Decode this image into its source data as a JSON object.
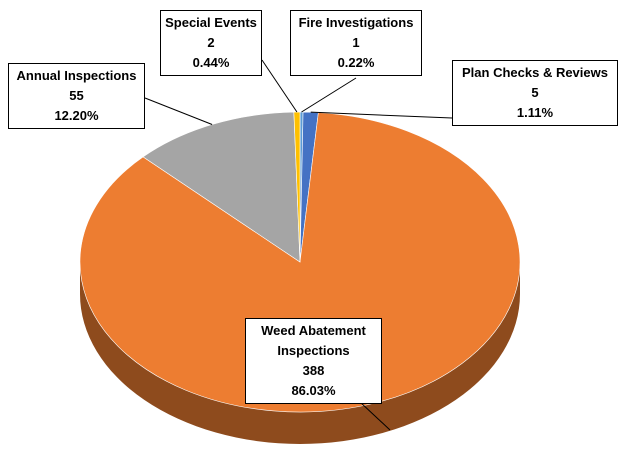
{
  "chart_data": {
    "type": "pie3d",
    "categories": [
      "Fire Investigations",
      "Plan Checks & Reviews",
      "Weed Abatement Inspections",
      "Annual Inspections",
      "Special Events"
    ],
    "values": [
      1,
      5,
      388,
      55,
      2
    ],
    "percent_labels": [
      "0.22%",
      "1.11%",
      "86.03%",
      "12.20%",
      "0.44%"
    ],
    "colors": [
      "#5b9bd5",
      "#4472c4",
      "#ed7d31",
      "#a5a5a5",
      "#ffc000"
    ]
  }
}
